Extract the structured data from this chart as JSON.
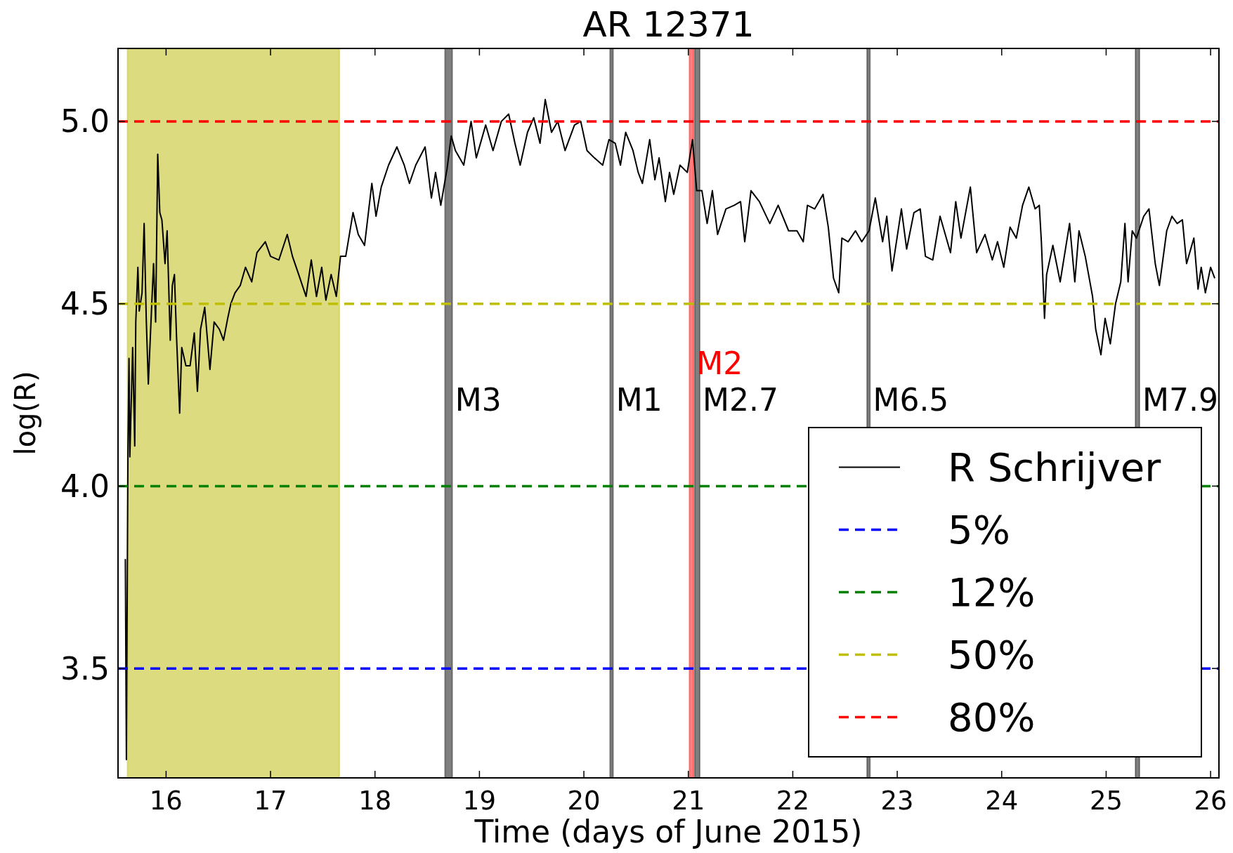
{
  "chart_data": {
    "type": "line",
    "title": "AR 12371",
    "xlabel": "Time (days of June 2015)",
    "ylabel": "log(R)",
    "xlim": [
      15.54,
      26.08
    ],
    "ylim": [
      3.2,
      5.2
    ],
    "xticks": [
      16,
      17,
      18,
      19,
      20,
      21,
      22,
      23,
      24,
      25,
      26
    ],
    "yticks": [
      {
        "value": 3.5,
        "label": "3.5"
      },
      {
        "value": 4.0,
        "label": "4.0"
      },
      {
        "value": 4.5,
        "label": "4.5"
      },
      {
        "value": 5.0,
        "label": "5.0"
      }
    ],
    "grid": false,
    "legend": "bottom right",
    "line_style": "solid",
    "marker": "none",
    "series": [
      {
        "name": "R Schrijver",
        "color": "#000000",
        "x": [
          15.61,
          15.62,
          15.635,
          15.645,
          15.653,
          15.68,
          15.7,
          15.71,
          15.73,
          15.743,
          15.77,
          15.79,
          15.81,
          15.83,
          15.86,
          15.88,
          15.9,
          15.92,
          15.94,
          15.96,
          15.99,
          16.01,
          16.04,
          16.06,
          16.08,
          16.1,
          16.13,
          16.15,
          16.19,
          16.23,
          16.27,
          16.3,
          16.33,
          16.37,
          16.42,
          16.46,
          16.51,
          16.55,
          16.59,
          16.62,
          16.66,
          16.71,
          16.76,
          16.82,
          16.87,
          16.95,
          17.0,
          17.08,
          17.16,
          17.21,
          17.27,
          17.34,
          17.39,
          17.44,
          17.49,
          17.53,
          17.58,
          17.63,
          17.67,
          17.72,
          17.79,
          17.84,
          17.9,
          17.97,
          18.01,
          18.06,
          18.13,
          18.21,
          18.28,
          18.33,
          18.39,
          18.48,
          18.54,
          18.58,
          18.63,
          18.69,
          18.73,
          18.77,
          18.85,
          18.92,
          18.97,
          19.06,
          19.13,
          19.21,
          19.28,
          19.34,
          19.39,
          19.46,
          19.52,
          19.58,
          19.63,
          19.69,
          19.75,
          19.82,
          19.91,
          19.97,
          20.03,
          20.1,
          20.18,
          20.24,
          20.3,
          20.35,
          20.4,
          20.47,
          20.52,
          20.56,
          20.63,
          20.68,
          20.72,
          20.78,
          20.82,
          20.86,
          20.92,
          20.99,
          21.04,
          21.08,
          21.13,
          21.18,
          21.23,
          21.28,
          21.36,
          21.44,
          21.5,
          21.54,
          21.6,
          21.68,
          21.78,
          21.86,
          21.96,
          22.04,
          22.1,
          22.14,
          22.21,
          22.29,
          22.34,
          22.39,
          22.44,
          22.47,
          22.53,
          22.6,
          22.66,
          22.73,
          22.79,
          22.86,
          22.9,
          22.95,
          23.04,
          23.09,
          23.16,
          23.22,
          23.27,
          23.34,
          23.41,
          23.51,
          23.56,
          23.61,
          23.7,
          23.76,
          23.84,
          23.91,
          23.96,
          24.02,
          24.08,
          24.14,
          24.2,
          24.26,
          24.32,
          24.36,
          24.38,
          24.41,
          24.43,
          24.49,
          24.56,
          24.65,
          24.7,
          24.74,
          24.8,
          24.87,
          24.9,
          24.95,
          24.99,
          25.04,
          25.09,
          25.14,
          25.18,
          25.21,
          25.25,
          25.29,
          25.36,
          25.41,
          25.47,
          25.51,
          25.58,
          25.63,
          25.68,
          25.73,
          25.77,
          25.84,
          25.88,
          25.91,
          25.95,
          26.0,
          26.04
        ],
        "values": [
          3.8,
          3.25,
          4.1,
          4.35,
          4.08,
          4.38,
          4.11,
          4.45,
          4.6,
          4.48,
          4.53,
          4.72,
          4.46,
          4.28,
          4.48,
          4.61,
          4.45,
          4.91,
          4.75,
          4.73,
          4.61,
          4.7,
          4.4,
          4.55,
          4.58,
          4.41,
          4.2,
          4.38,
          4.33,
          4.33,
          4.42,
          4.26,
          4.43,
          4.49,
          4.32,
          4.45,
          4.43,
          4.4,
          4.46,
          4.5,
          4.53,
          4.55,
          4.6,
          4.56,
          4.64,
          4.67,
          4.63,
          4.62,
          4.69,
          4.63,
          4.58,
          4.52,
          4.62,
          4.52,
          4.6,
          4.51,
          4.58,
          4.52,
          4.63,
          4.63,
          4.75,
          4.69,
          4.66,
          4.83,
          4.74,
          4.82,
          4.88,
          4.93,
          4.88,
          4.83,
          4.88,
          4.93,
          4.79,
          4.86,
          4.77,
          4.87,
          4.96,
          4.92,
          4.88,
          5.0,
          4.9,
          4.99,
          4.92,
          5.0,
          5.02,
          4.94,
          4.88,
          4.97,
          5.01,
          4.94,
          5.06,
          4.97,
          5.0,
          4.92,
          4.99,
          5.0,
          4.92,
          4.9,
          4.88,
          4.95,
          4.94,
          4.88,
          4.97,
          4.92,
          4.86,
          4.83,
          4.95,
          4.84,
          4.9,
          4.78,
          4.86,
          4.8,
          4.88,
          4.86,
          4.95,
          4.81,
          4.81,
          4.72,
          4.81,
          4.69,
          4.76,
          4.77,
          4.78,
          4.67,
          4.81,
          4.78,
          4.72,
          4.77,
          4.7,
          4.7,
          4.67,
          4.77,
          4.76,
          4.8,
          4.71,
          4.57,
          4.53,
          4.68,
          4.67,
          4.7,
          4.67,
          4.7,
          4.79,
          4.67,
          4.74,
          4.59,
          4.76,
          4.65,
          4.75,
          4.76,
          4.63,
          4.62,
          4.74,
          4.64,
          4.78,
          4.68,
          4.82,
          4.64,
          4.69,
          4.62,
          4.67,
          4.6,
          4.71,
          4.68,
          4.77,
          4.82,
          4.76,
          4.77,
          4.67,
          4.46,
          4.58,
          4.66,
          4.56,
          4.72,
          4.56,
          4.7,
          4.63,
          4.52,
          4.43,
          4.36,
          4.46,
          4.39,
          4.5,
          4.56,
          4.72,
          4.56,
          4.7,
          4.68,
          4.74,
          4.76,
          4.61,
          4.55,
          4.7,
          4.74,
          4.72,
          4.73,
          4.61,
          4.68,
          4.54,
          4.6,
          4.53,
          4.6,
          4.57
        ]
      },
      {
        "name": "5%",
        "color": "#0000ff",
        "line_style": "dashed",
        "x": [
          15.54,
          26.08
        ],
        "values": [
          3.5,
          3.5
        ]
      },
      {
        "name": "12%",
        "color": "#008000",
        "line_style": "dashed",
        "x": [
          15.54,
          26.08
        ],
        "values": [
          4.0,
          4.0
        ]
      },
      {
        "name": "50%",
        "color": "#bfbf00",
        "line_style": "dashed",
        "x": [
          15.54,
          26.08
        ],
        "values": [
          4.5,
          4.5
        ]
      },
      {
        "name": "80%",
        "color": "#ff0000",
        "line_style": "dashed",
        "x": [
          15.54,
          26.08
        ],
        "values": [
          5.0,
          5.0
        ]
      }
    ],
    "bands": [
      {
        "axis": "x",
        "from": 15.63,
        "to": 17.66,
        "color": "#bbb700"
      },
      {
        "axis": "x",
        "from": 18.67,
        "to": 18.74,
        "label": "M3",
        "color": "#000000"
      },
      {
        "axis": "x",
        "from": 20.25,
        "to": 20.28,
        "label": "M1",
        "color": "#000000"
      },
      {
        "axis": "x",
        "from": 21.01,
        "to": 21.05,
        "label": "M2",
        "color": "#ff0000"
      },
      {
        "axis": "x",
        "from": 21.06,
        "to": 21.11,
        "label": "M2.7",
        "color": "#000000"
      },
      {
        "axis": "x",
        "from": 22.71,
        "to": 22.74,
        "label": "M6.5",
        "color": "#000000"
      },
      {
        "axis": "x",
        "from": 25.28,
        "to": 25.32,
        "label": "M7.9",
        "color": "#000000"
      }
    ]
  }
}
